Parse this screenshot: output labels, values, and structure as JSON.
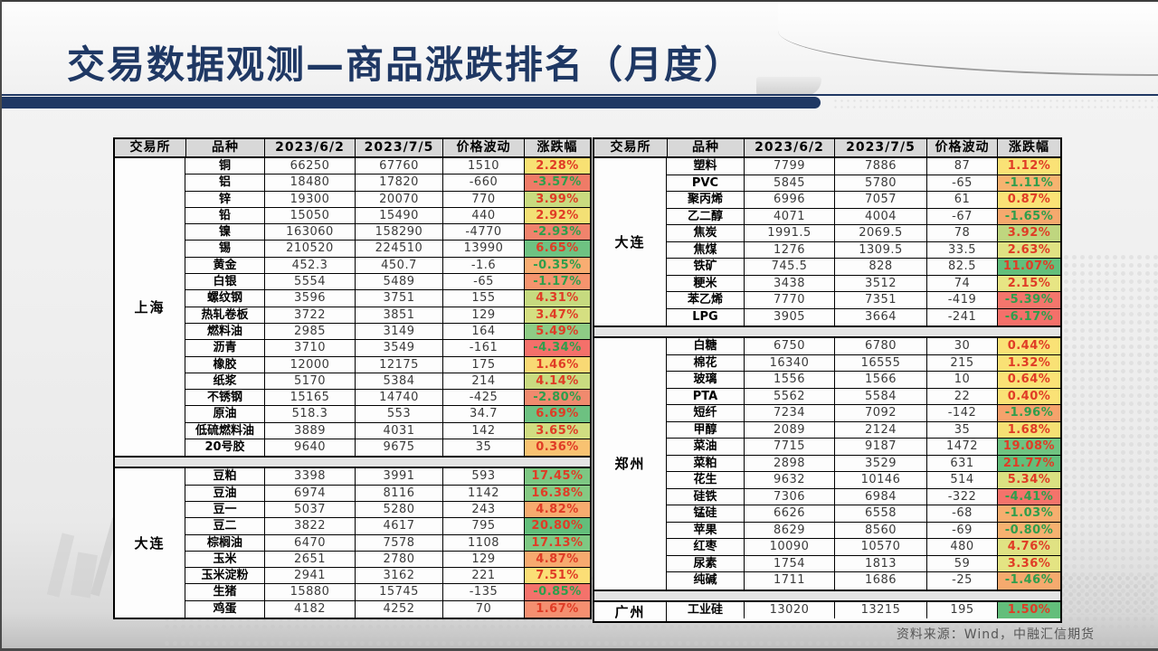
{
  "title": "交易数据观测—商品涨跌排名（月度）",
  "source_note": "资料来源：Wind，中融汇信期货",
  "columns": [
    "交易所",
    "品种",
    "2023/6/2",
    "2023/7/5",
    "价格波动",
    "涨跌幅"
  ],
  "colors": {
    "title": "#1f3864",
    "accent_bar": "#1f3864",
    "header_bg": "#d8d8d8",
    "positive_text": "#e03c26",
    "negative_text": "#2f9e4c",
    "source_text": "#565656"
  },
  "tables": [
    {
      "id": "left",
      "sections": [
        {
          "exchange": "上海",
          "rows": [
            [
              "铜",
              "66250",
              "67760",
              "1510",
              "2.28%",
              "#f8e173"
            ],
            [
              "铝",
              "18480",
              "17820",
              "-660",
              "-3.57%",
              "#ef7b67"
            ],
            [
              "锌",
              "19300",
              "20070",
              "770",
              "3.99%",
              "#c9db7f"
            ],
            [
              "铅",
              "15050",
              "15490",
              "440",
              "2.92%",
              "#f3e075"
            ],
            [
              "镍",
              "163060",
              "158290",
              "-4770",
              "-2.93%",
              "#f0836c"
            ],
            [
              "锡",
              "210520",
              "224510",
              "13990",
              "6.65%",
              "#6ec282"
            ],
            [
              "黄金",
              "452.3",
              "450.7",
              "-1.6",
              "-0.35%",
              "#f8ad72"
            ],
            [
              "白银",
              "5554",
              "5489",
              "-65",
              "-1.17%",
              "#f5946e"
            ],
            [
              "螺纹钢",
              "3596",
              "3751",
              "155",
              "4.31%",
              "#c6da7f"
            ],
            [
              "热轧卷板",
              "3722",
              "3851",
              "129",
              "3.47%",
              "#d5df81"
            ],
            [
              "燃料油",
              "2985",
              "3149",
              "164",
              "5.49%",
              "#8ecc85"
            ],
            [
              "沥青",
              "3710",
              "3549",
              "-161",
              "-4.34%",
              "#f4706a"
            ],
            [
              "橡胶",
              "12000",
              "12175",
              "175",
              "1.46%",
              "#f9d974"
            ],
            [
              "纸浆",
              "5170",
              "5384",
              "214",
              "4.14%",
              "#c9db80"
            ],
            [
              "不锈钢",
              "15165",
              "14740",
              "-425",
              "-2.80%",
              "#f08a6e"
            ],
            [
              "原油",
              "518.3",
              "553",
              "34.7",
              "6.69%",
              "#6dc181"
            ],
            [
              "低硫燃料油",
              "3889",
              "4031",
              "142",
              "3.65%",
              "#d0dd81"
            ],
            [
              "20号胶",
              "9640",
              "9675",
              "35",
              "0.36%",
              "#f8c271"
            ]
          ]
        },
        {
          "exchange": "大连",
          "rows": [
            [
              "豆粕",
              "3398",
              "3991",
              "593",
              "17.45%",
              "#7dc783"
            ],
            [
              "豆油",
              "6974",
              "8116",
              "1142",
              "16.38%",
              "#85c983"
            ],
            [
              "豆一",
              "5037",
              "5280",
              "243",
              "4.82%",
              "#f6ab6f"
            ],
            [
              "豆二",
              "3822",
              "4617",
              "795",
              "20.80%",
              "#63be7b"
            ],
            [
              "棕榈油",
              "6470",
              "7578",
              "1108",
              "17.13%",
              "#7ec883"
            ],
            [
              "玉米",
              "2651",
              "2780",
              "129",
              "4.87%",
              "#f6aa6f"
            ],
            [
              "玉米淀粉",
              "2941",
              "3162",
              "221",
              "7.51%",
              "#fbde76"
            ],
            [
              "生猪",
              "15880",
              "15745",
              "-135",
              "-0.85%",
              "#f4726b"
            ],
            [
              "鸡蛋",
              "4182",
              "4252",
              "70",
              "1.67%",
              "#f58f70"
            ]
          ]
        }
      ]
    },
    {
      "id": "right",
      "sections": [
        {
          "exchange": "大连",
          "rows": [
            [
              "塑料",
              "7799",
              "7886",
              "87",
              "1.12%",
              "#fae276"
            ],
            [
              "PVC",
              "5845",
              "5780",
              "-65",
              "-1.11%",
              "#f6b370"
            ],
            [
              "聚丙烯",
              "6996",
              "7057",
              "61",
              "0.87%",
              "#fae276"
            ],
            [
              "乙二醇",
              "4071",
              "4004",
              "-67",
              "-1.65%",
              "#f5a96e"
            ],
            [
              "焦炭",
              "1991.5",
              "2069.5",
              "78",
              "3.92%",
              "#bfd67f"
            ],
            [
              "焦煤",
              "1276",
              "1309.5",
              "33.5",
              "2.63%",
              "#dfe283"
            ],
            [
              "铁矿",
              "745.5",
              "828",
              "82.5",
              "11.07%",
              "#63be7b"
            ],
            [
              "粳米",
              "3438",
              "3512",
              "74",
              "2.15%",
              "#e7e584"
            ],
            [
              "苯乙烯",
              "7770",
              "7351",
              "-419",
              "-5.39%",
              "#f4766c"
            ],
            [
              "LPG",
              "3905",
              "3664",
              "-241",
              "-6.17%",
              "#f4706a"
            ]
          ]
        },
        {
          "exchange": "郑州",
          "rows": [
            [
              "白糖",
              "6750",
              "6780",
              "30",
              "0.44%",
              "#fae276"
            ],
            [
              "棉花",
              "16340",
              "16555",
              "215",
              "1.32%",
              "#f9e175"
            ],
            [
              "玻璃",
              "1556",
              "1566",
              "10",
              "0.64%",
              "#fae276"
            ],
            [
              "PTA",
              "5562",
              "5584",
              "22",
              "0.40%",
              "#fae276"
            ],
            [
              "短纤",
              "7234",
              "7092",
              "-142",
              "-1.96%",
              "#f5a26c"
            ],
            [
              "甲醇",
              "2089",
              "2124",
              "35",
              "1.68%",
              "#f5e074"
            ],
            [
              "菜油",
              "7715",
              "9187",
              "1472",
              "19.08%",
              "#70c381"
            ],
            [
              "菜粕",
              "2898",
              "3529",
              "631",
              "21.77%",
              "#63be7b"
            ],
            [
              "花生",
              "9632",
              "10146",
              "514",
              "5.34%",
              "#dae182"
            ],
            [
              "硅铁",
              "7306",
              "6984",
              "-322",
              "-4.41%",
              "#f4736b"
            ],
            [
              "锰硅",
              "6626",
              "6558",
              "-68",
              "-1.03%",
              "#f6ae6f"
            ],
            [
              "苹果",
              "8629",
              "8560",
              "-69",
              "-0.80%",
              "#f6b170"
            ],
            [
              "红枣",
              "10090",
              "10570",
              "480",
              "4.76%",
              "#e0e283"
            ],
            [
              "尿素",
              "1754",
              "1813",
              "59",
              "3.36%",
              "#e4e483"
            ],
            [
              "纯碱",
              "1711",
              "1686",
              "-25",
              "-1.46%",
              "#f5aa6e"
            ]
          ]
        },
        {
          "exchange": "广州",
          "rows": [
            [
              "工业硅",
              "13020",
              "13215",
              "195",
              "1.50%",
              "#63be7b"
            ]
          ]
        }
      ]
    }
  ]
}
